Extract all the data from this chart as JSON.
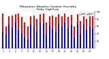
{
  "title": "Milwaukee Weather Outdoor Humidity",
  "subtitle": "Daily High/Low",
  "high_color": "#ff0000",
  "low_color": "#0000ff",
  "background_color": "#ffffff",
  "ylim": [
    0,
    100
  ],
  "high_values": [
    95,
    60,
    88,
    90,
    93,
    95,
    85,
    72,
    60,
    88,
    90,
    80,
    93,
    95,
    72,
    88,
    90,
    85,
    93,
    88,
    95,
    85,
    92,
    60,
    93,
    75,
    93,
    80,
    88,
    90
  ],
  "low_values": [
    45,
    38,
    65,
    58,
    72,
    50,
    42,
    30,
    25,
    65,
    60,
    45,
    70,
    68,
    38,
    62,
    55,
    45,
    68,
    60,
    72,
    55,
    65,
    30,
    68,
    40,
    65,
    50,
    60,
    55
  ],
  "legend_high": "High%",
  "legend_low": "Low%"
}
